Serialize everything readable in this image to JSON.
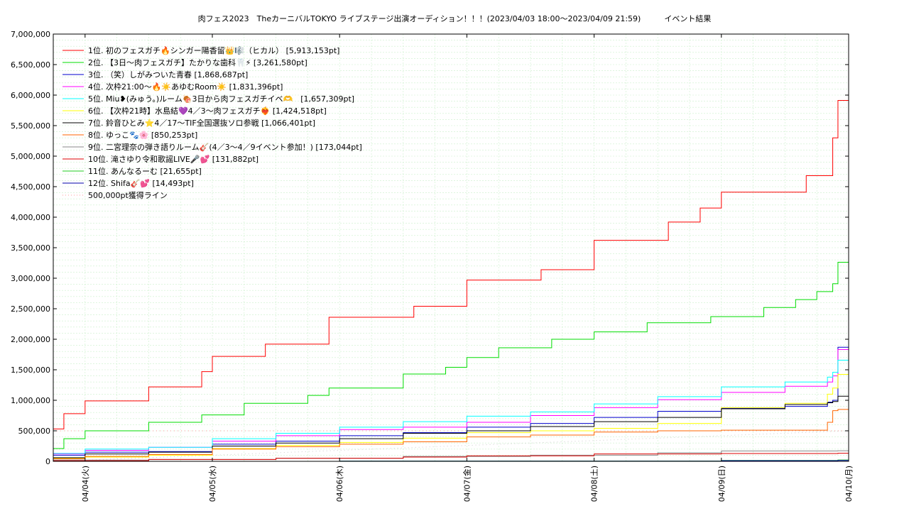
{
  "chart_data": {
    "type": "line",
    "title": "肉フェス2023　TheカーニバルTOKYO ライブステージ出演オーディション！！！(2023/04/03 18:00〜2023/04/09 21:59)　　　イベント結果",
    "xlabel": "",
    "ylabel": "",
    "x_ticks": [
      "04/04(火)",
      "04/05(水)",
      "04/06(木)",
      "04/07(金)",
      "04/08(土)",
      "04/09(日)",
      "04/10(月)"
    ],
    "xlim": [
      "2023-04-03T18:00",
      "2023-04-10T00:00"
    ],
    "ylim": [
      0,
      7000000
    ],
    "y_ticks": [
      0,
      500000,
      1000000,
      1500000,
      2000000,
      2500000,
      3000000,
      3500000,
      4000000,
      4500000,
      5000000,
      5500000,
      6000000,
      6500000,
      7000000
    ],
    "y_tick_labels": [
      "0",
      "500,000",
      "1,000,000",
      "1,500,000",
      "2,000,000",
      "2,500,000",
      "3,000,000",
      "3,500,000",
      "4,000,000",
      "4,500,000",
      "5,000,000",
      "5,500,000",
      "6,000,000",
      "6,500,000",
      "7,000,000"
    ],
    "grid": true,
    "legend_position": "top-left",
    "series": [
      {
        "name": " 1位. 初のフェスガチ🔥シンガー陽香留👑🎼（ヒカル） [5,913,153pt]",
        "color": "#ff0000",
        "x": [
          "2023-04-03T18:00",
          "2023-04-03T20:00",
          "2023-04-04T00:00",
          "2023-04-04T06:00",
          "2023-04-04T12:00",
          "2023-04-04T14:00",
          "2023-04-04T22:00",
          "2023-04-05T00:00",
          "2023-04-05T08:00",
          "2023-04-05T10:00",
          "2023-04-05T20:00",
          "2023-04-05T22:00",
          "2023-04-06T12:00",
          "2023-04-06T14:00",
          "2023-04-06T22:00",
          "2023-04-07T00:00",
          "2023-04-07T11:00",
          "2023-04-07T14:00",
          "2023-04-07T20:00",
          "2023-04-08T00:00",
          "2023-04-08T10:00",
          "2023-04-08T14:00",
          "2023-04-08T20:00",
          "2023-04-09T00:00",
          "2023-04-09T12:00",
          "2023-04-09T16:00",
          "2023-04-09T21:00",
          "2023-04-09T21:59"
        ],
        "values": [
          530000,
          780000,
          990000,
          990000,
          1220000,
          1220000,
          1470000,
          1720000,
          1720000,
          1920000,
          1920000,
          2360000,
          2360000,
          2540000,
          2540000,
          2970000,
          2970000,
          3140000,
          3140000,
          3620000,
          3620000,
          3920000,
          4150000,
          4410000,
          4410000,
          4680000,
          5300000,
          5913153
        ]
      },
      {
        "name": " 2位. 【3日〜肉フェスガチ】たかりな歯科🦷⚡ [3,261,580pt]",
        "color": "#00dd00",
        "x": [
          "2023-04-03T18:00",
          "2023-04-03T20:00",
          "2023-04-04T00:00",
          "2023-04-04T06:00",
          "2023-04-04T12:00",
          "2023-04-04T14:00",
          "2023-04-04T22:00",
          "2023-04-05T06:00",
          "2023-04-05T12:00",
          "2023-04-05T18:00",
          "2023-04-05T22:00",
          "2023-04-06T12:00",
          "2023-04-06T14:00",
          "2023-04-06T20:00",
          "2023-04-07T00:00",
          "2023-04-07T06:00",
          "2023-04-07T16:00",
          "2023-04-08T00:00",
          "2023-04-08T10:00",
          "2023-04-08T16:00",
          "2023-04-08T22:00",
          "2023-04-09T08:00",
          "2023-04-09T14:00",
          "2023-04-09T18:00",
          "2023-04-09T21:00",
          "2023-04-09T21:59"
        ],
        "values": [
          210000,
          370000,
          500000,
          500000,
          640000,
          640000,
          760000,
          950000,
          950000,
          1080000,
          1200000,
          1430000,
          1430000,
          1540000,
          1700000,
          1860000,
          2000000,
          2120000,
          2270000,
          2270000,
          2370000,
          2520000,
          2650000,
          2780000,
          2910000,
          3261580
        ]
      },
      {
        "name": " 3位. （笑）しがみついた青春 [1,868,687pt]",
        "color": "#0000cc",
        "x": [
          "2023-04-03T18:00",
          "2023-04-04T00:00",
          "2023-04-04T12:00",
          "2023-04-05T00:00",
          "2023-04-05T12:00",
          "2023-04-06T00:00",
          "2023-04-06T12:00",
          "2023-04-07T00:00",
          "2023-04-07T12:00",
          "2023-04-08T00:00",
          "2023-04-08T12:00",
          "2023-04-09T00:00",
          "2023-04-09T12:00",
          "2023-04-09T20:00",
          "2023-04-09T21:00",
          "2023-04-09T21:59"
        ],
        "values": [
          100000,
          150000,
          160000,
          280000,
          330000,
          420000,
          470000,
          560000,
          620000,
          720000,
          820000,
          870000,
          900000,
          970000,
          1000000,
          1868687
        ]
      },
      {
        "name": " 4位. 次枠21:00〜🔥☀️あゆむRoom☀️ [1,831,396pt]",
        "color": "#ff00ff",
        "x": [
          "2023-04-03T18:00",
          "2023-04-04T00:00",
          "2023-04-04T12:00",
          "2023-04-05T00:00",
          "2023-04-05T12:00",
          "2023-04-06T00:00",
          "2023-04-06T12:00",
          "2023-04-07T00:00",
          "2023-04-07T12:00",
          "2023-04-08T00:00",
          "2023-04-08T12:00",
          "2023-04-09T00:00",
          "2023-04-09T12:00",
          "2023-04-09T20:00",
          "2023-04-09T21:00",
          "2023-04-09T21:59"
        ],
        "values": [
          120000,
          180000,
          230000,
          330000,
          420000,
          520000,
          560000,
          640000,
          750000,
          880000,
          1010000,
          1130000,
          1230000,
          1300000,
          1400000,
          1831396
        ]
      },
      {
        "name": " 5位. Miu❥(みゅう。)ルーム🍖3日から肉フェスガチイベ🫶　[1,657,309pt]",
        "color": "#00ffff",
        "x": [
          "2023-04-03T18:00",
          "2023-04-04T00:00",
          "2023-04-04T12:00",
          "2023-04-05T00:00",
          "2023-04-05T12:00",
          "2023-04-06T00:00",
          "2023-04-06T12:00",
          "2023-04-07T00:00",
          "2023-04-07T12:00",
          "2023-04-08T00:00",
          "2023-04-08T12:00",
          "2023-04-09T00:00",
          "2023-04-09T12:00",
          "2023-04-09T20:00",
          "2023-04-09T21:00",
          "2023-04-09T21:59"
        ],
        "values": [
          130000,
          200000,
          230000,
          370000,
          460000,
          560000,
          650000,
          740000,
          810000,
          940000,
          1060000,
          1220000,
          1300000,
          1380000,
          1460000,
          1657309
        ]
      },
      {
        "name": " 6位. 【次枠21時】水島結💜4／3〜肉フェスガチ❤️‍🔥 [1,424,518pt]",
        "color": "#ffff00",
        "x": [
          "2023-04-03T18:00",
          "2023-04-04T00:00",
          "2023-04-04T12:00",
          "2023-04-05T00:00",
          "2023-04-05T12:00",
          "2023-04-06T00:00",
          "2023-04-06T12:00",
          "2023-04-07T00:00",
          "2023-04-07T12:00",
          "2023-04-08T00:00",
          "2023-04-08T12:00",
          "2023-04-09T00:00",
          "2023-04-09T12:00",
          "2023-04-09T20:00",
          "2023-04-09T21:00",
          "2023-04-09T21:59"
        ],
        "values": [
          50000,
          70000,
          100000,
          210000,
          260000,
          310000,
          380000,
          470000,
          500000,
          540000,
          620000,
          880000,
          950000,
          1100000,
          1200000,
          1424518
        ]
      },
      {
        "name": " 7位. 鈴音ひとみ⭐4／17〜TIF全国選抜ソロ参戦 [1,066,401pt]",
        "color": "#000000",
        "x": [
          "2023-04-03T18:00",
          "2023-04-04T00:00",
          "2023-04-04T12:00",
          "2023-04-05T00:00",
          "2023-04-05T12:00",
          "2023-04-06T00:00",
          "2023-04-06T12:00",
          "2023-04-07T00:00",
          "2023-04-07T12:00",
          "2023-04-08T00:00",
          "2023-04-08T12:00",
          "2023-04-09T00:00",
          "2023-04-09T12:00",
          "2023-04-09T20:00",
          "2023-04-09T21:00",
          "2023-04-09T21:59"
        ],
        "values": [
          60000,
          120000,
          150000,
          250000,
          300000,
          370000,
          460000,
          500000,
          570000,
          650000,
          720000,
          860000,
          930000,
          960000,
          980000,
          1066401
        ]
      },
      {
        "name": " 8位. ゆっこ🐾🌸 [850,253pt]",
        "color": "#ff6600",
        "x": [
          "2023-04-03T18:00",
          "2023-04-04T00:00",
          "2023-04-04T12:00",
          "2023-04-05T00:00",
          "2023-04-05T12:00",
          "2023-04-06T00:00",
          "2023-04-06T12:00",
          "2023-04-07T00:00",
          "2023-04-07T12:00",
          "2023-04-08T00:00",
          "2023-04-08T12:00",
          "2023-04-09T00:00",
          "2023-04-09T12:00",
          "2023-04-09T20:00",
          "2023-04-09T21:00",
          "2023-04-09T21:59"
        ],
        "values": [
          40000,
          80000,
          110000,
          200000,
          240000,
          280000,
          320000,
          400000,
          430000,
          480000,
          500000,
          510000,
          510000,
          640000,
          830000,
          850253
        ]
      },
      {
        "name": " 9位. 二宮理奈の弾き語りルーム🎸(4／3〜4／9イベント参加！) [173,044pt]",
        "color": "#888888",
        "x": [
          "2023-04-03T18:00",
          "2023-04-04T12:00",
          "2023-04-05T12:00",
          "2023-04-06T12:00",
          "2023-04-07T12:00",
          "2023-04-08T12:00",
          "2023-04-09T00:00",
          "2023-04-09T21:59"
        ],
        "values": [
          20000,
          30000,
          50000,
          80000,
          100000,
          140000,
          170000,
          173044
        ]
      },
      {
        "name": "10位. 滝さゆり令和歌謡LIVE🎤💕 [131,882pt]",
        "color": "#dd0000",
        "x": [
          "2023-04-03T18:00",
          "2023-04-04T12:00",
          "2023-04-05T12:00",
          "2023-04-06T12:00",
          "2023-04-07T00:00",
          "2023-04-08T00:00",
          "2023-04-09T00:00",
          "2023-04-09T21:59"
        ],
        "values": [
          10000,
          30000,
          50000,
          70000,
          90000,
          120000,
          128000,
          131882
        ]
      },
      {
        "name": "11位. あんなるーむ [21,655pt]",
        "color": "#22cc22",
        "x": [
          "2023-04-03T18:00",
          "2023-04-06T00:00",
          "2023-04-09T00:00",
          "2023-04-09T21:59"
        ],
        "values": [
          0,
          5000,
          15000,
          21655
        ]
      },
      {
        "name": "12位. Shifa🎸💕 [14,493pt]",
        "color": "#0000aa",
        "x": [
          "2023-04-03T18:00",
          "2023-04-06T00:00",
          "2023-04-09T00:00",
          "2023-04-09T21:59"
        ],
        "values": [
          0,
          3000,
          10000,
          14493
        ]
      }
    ],
    "reference_lines": [
      {
        "name": "500,000pt獲得ライン",
        "value": 500000,
        "color": "#ff9999",
        "style": "dotted"
      },
      {
        "name": "500,000pt獲得ライン",
        "value_from": 0,
        "value_to": 500000,
        "color": "#cccccc",
        "style": "dotted"
      }
    ]
  }
}
